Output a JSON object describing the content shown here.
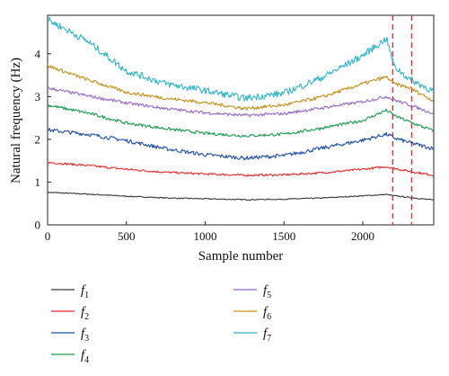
{
  "chart_data": {
    "type": "line",
    "title": "",
    "xlabel": "Sample number",
    "ylabel": "Natural frequency (Hz)",
    "xlim": [
      0,
      2450
    ],
    "ylim": [
      0,
      4.9
    ],
    "x_ticks": [
      0,
      500,
      1000,
      1500,
      2000
    ],
    "y_ticks": [
      0,
      1,
      2,
      3,
      4
    ],
    "grid": false,
    "legend_position": "below plot, two columns",
    "vlines": [
      {
        "x": 2190,
        "color": "#e8282b",
        "style": "dashed"
      },
      {
        "x": 2310,
        "color": "#e8282b",
        "style": "dashed"
      }
    ],
    "x": [
      0,
      250,
      500,
      750,
      1000,
      1250,
      1500,
      1750,
      2000,
      2150,
      2200,
      2300,
      2450
    ],
    "series": [
      {
        "name": "f",
        "sub": "1",
        "color": "#3a3a3a",
        "noise": 0.012,
        "values": [
          0.76,
          0.72,
          0.67,
          0.63,
          0.61,
          0.59,
          0.6,
          0.63,
          0.68,
          0.71,
          0.68,
          0.64,
          0.58
        ]
      },
      {
        "name": "f",
        "sub": "2",
        "color": "#e8282b",
        "noise": 0.025,
        "values": [
          1.46,
          1.39,
          1.3,
          1.23,
          1.19,
          1.16,
          1.17,
          1.22,
          1.3,
          1.36,
          1.32,
          1.25,
          1.16
        ]
      },
      {
        "name": "f",
        "sub": "3",
        "color": "#1f4fa6",
        "noise": 0.045,
        "values": [
          2.22,
          2.12,
          1.97,
          1.78,
          1.64,
          1.56,
          1.62,
          1.8,
          1.98,
          2.12,
          2.03,
          1.92,
          1.78
        ]
      },
      {
        "name": "f",
        "sub": "4",
        "color": "#1a9a4a",
        "noise": 0.035,
        "values": [
          2.8,
          2.62,
          2.38,
          2.25,
          2.14,
          2.08,
          2.12,
          2.27,
          2.44,
          2.68,
          2.56,
          2.4,
          2.2
        ]
      },
      {
        "name": "f",
        "sub": "5",
        "color": "#9466c9",
        "noise": 0.035,
        "values": [
          3.2,
          3.02,
          2.85,
          2.72,
          2.62,
          2.56,
          2.6,
          2.74,
          2.88,
          3.0,
          2.92,
          2.8,
          2.6
        ]
      },
      {
        "name": "f",
        "sub": "6",
        "color": "#c4901a",
        "noise": 0.04,
        "values": [
          3.72,
          3.4,
          3.1,
          2.96,
          2.86,
          2.72,
          2.8,
          3.0,
          3.3,
          3.46,
          3.3,
          3.2,
          2.9
        ]
      },
      {
        "name": "f",
        "sub": "7",
        "color": "#2cb4c8",
        "noise": 0.08,
        "values": [
          4.8,
          4.3,
          3.6,
          3.3,
          3.14,
          2.96,
          3.08,
          3.46,
          3.96,
          4.36,
          3.7,
          3.4,
          3.12
        ]
      }
    ]
  }
}
